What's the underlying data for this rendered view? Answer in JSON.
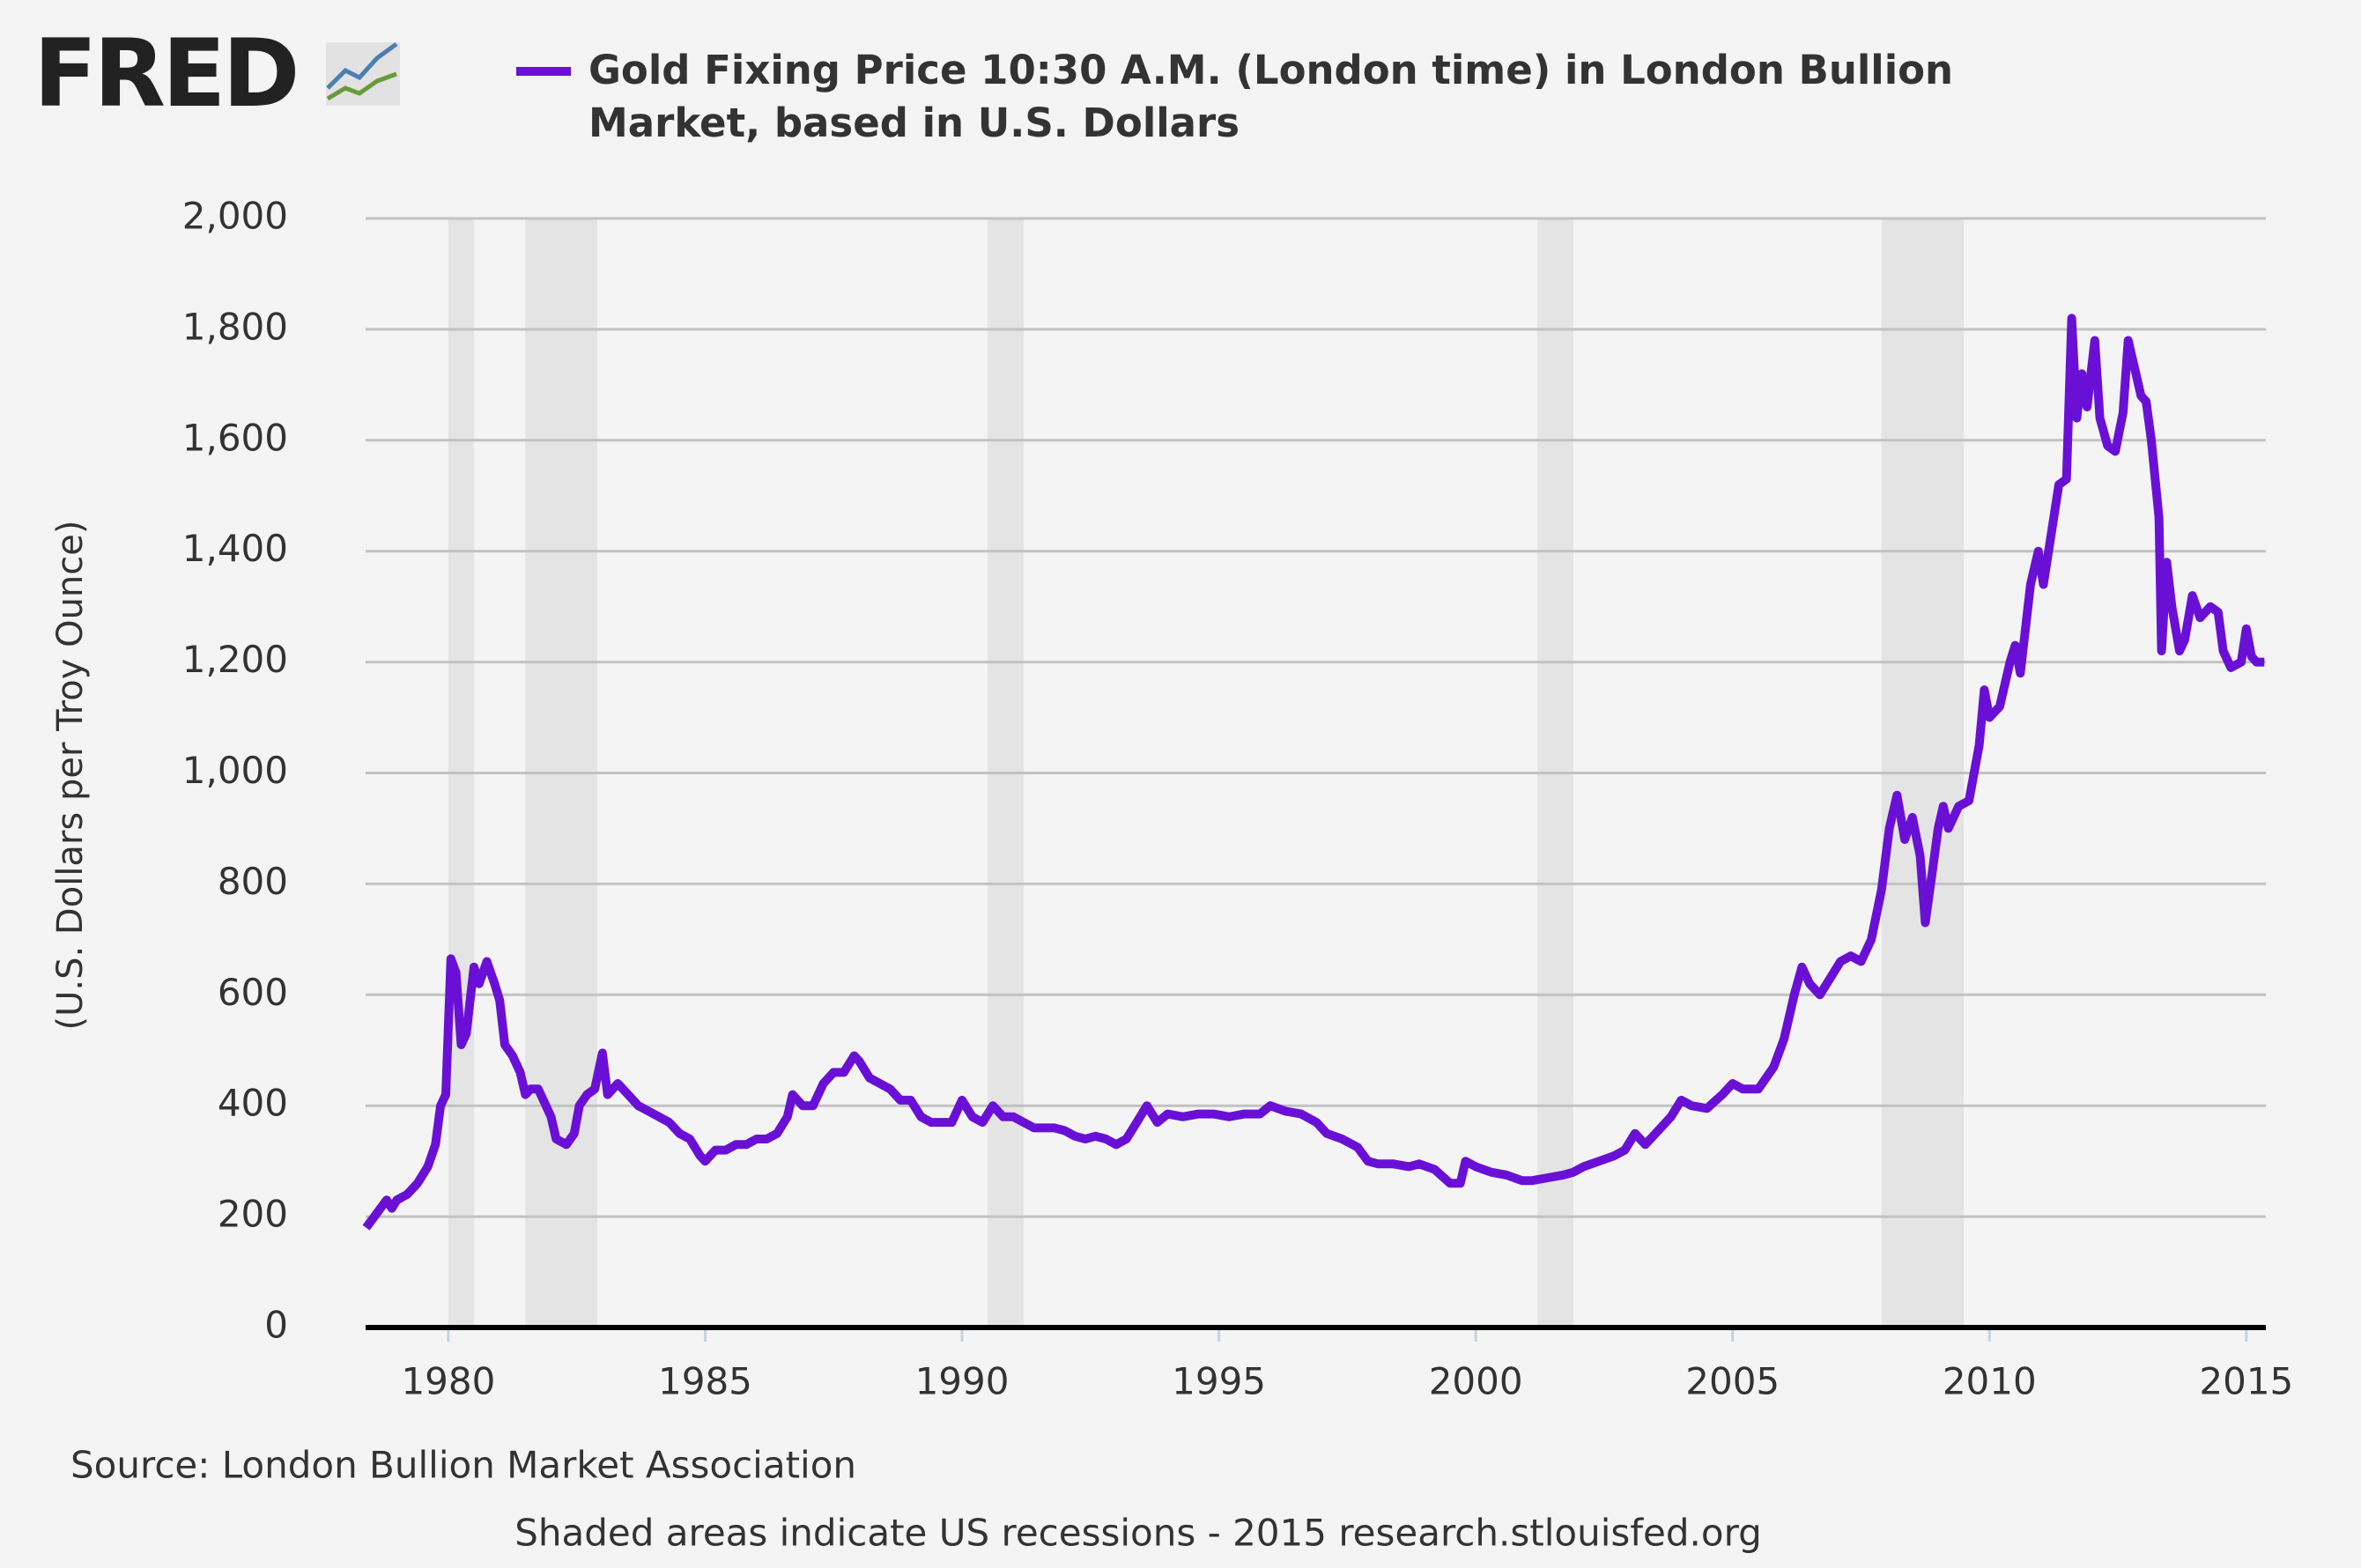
{
  "logo": "FRED",
  "chart_data": {
    "type": "line",
    "series": [
      {
        "name": "Gold Fixing Price 10:30 A.M. (London time) in London Bullion Market, based in U.S. Dollars",
        "color": "#6a10d6",
        "values": [
          180,
          205,
          230,
          215,
          230,
          240,
          260,
          290,
          330,
          400,
          420,
          665,
          640,
          510,
          530,
          650,
          620,
          660,
          620,
          590,
          510,
          490,
          460,
          420,
          430,
          430,
          400,
          380,
          340,
          330,
          350,
          400,
          420,
          430,
          495,
          420,
          440,
          420,
          400,
          390,
          380,
          370,
          350,
          340,
          310,
          300,
          320,
          320,
          330,
          330,
          340,
          340,
          350,
          380,
          420,
          400,
          400,
          440,
          460,
          460,
          490,
          480,
          450,
          440,
          430,
          410,
          410,
          380,
          370,
          370,
          370,
          410,
          380,
          370,
          400,
          380,
          380,
          370,
          360,
          360,
          360,
          355,
          345,
          340,
          345,
          340,
          330,
          340,
          370,
          400,
          370,
          385,
          380,
          385,
          385,
          380,
          385,
          385,
          400,
          390,
          385,
          370,
          350,
          340,
          325,
          300,
          295,
          295,
          290,
          295,
          285,
          260,
          260,
          300,
          290,
          280,
          275,
          265,
          265,
          270,
          275,
          280,
          290,
          300,
          310,
          320,
          350,
          330,
          350,
          380,
          410,
          400,
          395,
          420,
          440,
          430,
          430,
          470,
          520,
          600,
          650,
          620,
          600,
          630,
          660,
          670,
          660,
          700,
          790,
          900,
          960,
          880,
          920,
          850,
          730,
          830,
          900,
          940,
          900,
          940,
          950,
          1050,
          1150,
          1100,
          1120,
          1200,
          1230,
          1180,
          1340,
          1400,
          1340,
          1430,
          1520,
          1530,
          1820,
          1640,
          1720,
          1660,
          1780,
          1640,
          1590,
          1580,
          1650,
          1780,
          1720,
          1680,
          1670,
          1600,
          1460,
          1220,
          1380,
          1300,
          1220,
          1240,
          1320,
          1280,
          1300,
          1290,
          1220,
          1190,
          1200,
          1260,
          1210,
          1200,
          1200
        ]
      }
    ],
    "x": [
      1978.4,
      1978.6,
      1978.8,
      1978.9,
      1979.0,
      1979.2,
      1979.4,
      1979.6,
      1979.75,
      1979.85,
      1979.95,
      1980.05,
      1980.15,
      1980.25,
      1980.35,
      1980.5,
      1980.6,
      1980.75,
      1980.9,
      1981.0,
      1981.1,
      1981.25,
      1981.4,
      1981.5,
      1981.6,
      1981.75,
      1981.9,
      1982.0,
      1982.1,
      1982.3,
      1982.45,
      1982.55,
      1982.7,
      1982.85,
      1983.0,
      1983.1,
      1983.3,
      1983.5,
      1983.7,
      1983.9,
      1984.1,
      1984.3,
      1984.5,
      1984.7,
      1984.9,
      1985.0,
      1985.2,
      1985.4,
      1985.6,
      1985.8,
      1986.0,
      1986.2,
      1986.4,
      1986.6,
      1986.7,
      1986.9,
      1987.1,
      1987.3,
      1987.5,
      1987.7,
      1987.9,
      1988.0,
      1988.2,
      1988.4,
      1988.6,
      1988.8,
      1989.0,
      1989.2,
      1989.4,
      1989.6,
      1989.8,
      1990.0,
      1990.2,
      1990.4,
      1990.6,
      1990.8,
      1991.0,
      1991.2,
      1991.4,
      1991.6,
      1991.8,
      1992.0,
      1992.2,
      1992.4,
      1992.6,
      1992.8,
      1993.0,
      1993.2,
      1993.4,
      1993.6,
      1993.8,
      1994.0,
      1994.3,
      1994.6,
      1994.9,
      1995.2,
      1995.5,
      1995.8,
      1996.0,
      1996.3,
      1996.6,
      1996.9,
      1997.1,
      1997.4,
      1997.7,
      1997.9,
      1998.1,
      1998.4,
      1998.7,
      1998.9,
      1999.2,
      1999.5,
      1999.7,
      1999.8,
      2000.0,
      2000.3,
      2000.6,
      2000.9,
      2001.1,
      2001.4,
      2001.7,
      2001.9,
      2002.1,
      2002.4,
      2002.7,
      2002.9,
      2003.1,
      2003.3,
      2003.5,
      2003.8,
      2004.0,
      2004.2,
      2004.5,
      2004.8,
      2005.0,
      2005.2,
      2005.5,
      2005.8,
      2006.0,
      2006.2,
      2006.35,
      2006.5,
      2006.7,
      2006.9,
      2007.1,
      2007.3,
      2007.5,
      2007.7,
      2007.9,
      2008.05,
      2008.2,
      2008.35,
      2008.5,
      2008.65,
      2008.75,
      2008.9,
      2009.0,
      2009.1,
      2009.2,
      2009.4,
      2009.6,
      2009.8,
      2009.9,
      2010.0,
      2010.2,
      2010.4,
      2010.5,
      2010.6,
      2010.8,
      2010.95,
      2011.05,
      2011.2,
      2011.35,
      2011.5,
      2011.6,
      2011.7,
      2011.8,
      2011.9,
      2012.05,
      2012.15,
      2012.3,
      2012.45,
      2012.6,
      2012.7,
      2012.85,
      2012.95,
      2013.05,
      2013.15,
      2013.3,
      2013.35,
      2013.45,
      2013.55,
      2013.7,
      2013.8,
      2013.95,
      2014.1,
      2014.3,
      2014.45,
      2014.55,
      2014.7,
      2014.9,
      2015.0,
      2015.1,
      2015.2,
      2015.35
    ],
    "recessions": [
      [
        1980.0,
        1980.5
      ],
      [
        1981.5,
        1982.9
      ],
      [
        1990.5,
        1991.2
      ],
      [
        2001.2,
        2001.9
      ],
      [
        2007.9,
        2009.5
      ]
    ],
    "xlim": [
      1978.39,
      2015.38
    ],
    "xticks": [
      1980,
      1985,
      1990,
      1995,
      2000,
      2005,
      2010,
      2015
    ],
    "ylim": [
      0,
      2000
    ],
    "yticks": [
      0,
      200,
      400,
      600,
      800,
      {
        "value": 1000,
        "label": "1,000"
      },
      {
        "value": 1200,
        "label": "1,200"
      },
      {
        "value": 1400,
        "label": "1,400"
      },
      {
        "value": 1600,
        "label": "1,600"
      },
      {
        "value": 1800,
        "label": "1,800"
      },
      {
        "value": 2000,
        "label": "2,000"
      }
    ],
    "grid": true,
    "ylabel": "(U.S. Dollars per Troy Ounce)",
    "source": "Source: London Bullion Market Association",
    "note": "Shaded areas indicate US recessions - 2015 research.stlouisfed.org"
  }
}
